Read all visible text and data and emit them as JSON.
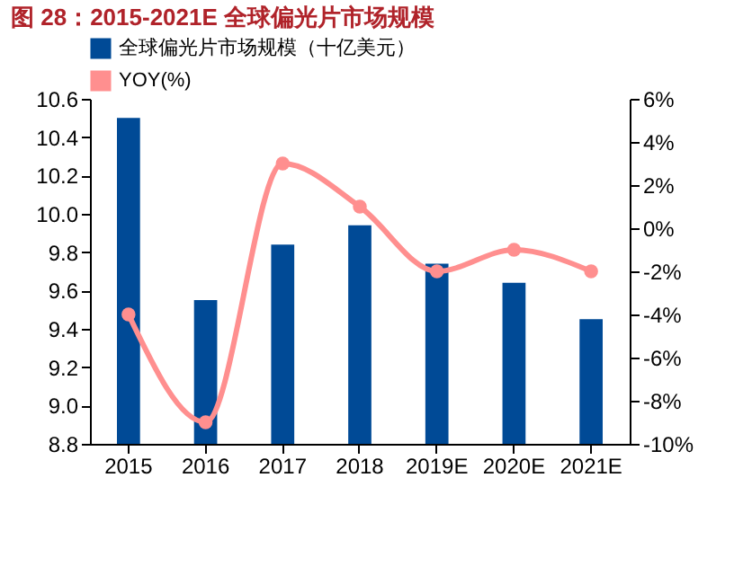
{
  "chart_data": {
    "type": "bar",
    "title": "图 28：2015-2021E 全球偏光片市场规模",
    "categories": [
      "2015",
      "2016",
      "2017",
      "2018",
      "2019E",
      "2020E",
      "2021E"
    ],
    "series": [
      {
        "name": "全球偏光片市场规模（十亿美元）",
        "color": "#004a96",
        "values": [
          10.5,
          9.55,
          9.84,
          9.94,
          9.74,
          9.64,
          9.45
        ]
      },
      {
        "name": "YOY(%)",
        "type": "line",
        "axis": "y2",
        "color": "#ff8f8f",
        "values": [
          -4,
          -9,
          3,
          1,
          -2,
          -1,
          -2
        ]
      }
    ],
    "ylim": [
      8.8,
      10.6
    ],
    "yticks": [
      8.8,
      {
        "value": 9,
        "label": "9.0"
      },
      9.2,
      9.4,
      9.6,
      9.8,
      {
        "value": 10,
        "label": "10.0"
      },
      10.2,
      10.4,
      10.6
    ],
    "y2lim": [
      -10,
      6
    ],
    "y2ticks": [
      {
        "value": -10,
        "label": "-10%"
      },
      {
        "value": -8,
        "label": "-8%"
      },
      {
        "value": -6,
        "label": "-6%"
      },
      {
        "value": -4,
        "label": "-4%"
      },
      {
        "value": -2,
        "label": "-2%"
      },
      {
        "value": 0,
        "label": "0%"
      },
      {
        "value": 2,
        "label": "2%"
      },
      {
        "value": 4,
        "label": "4%"
      },
      {
        "value": 6,
        "label": "6%"
      }
    ],
    "grid": false,
    "legend": "top",
    "marker": "circle",
    "line_style": "solid"
  }
}
